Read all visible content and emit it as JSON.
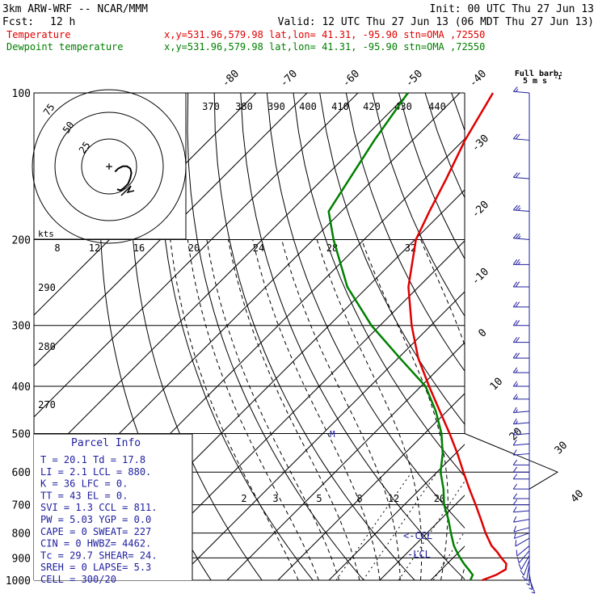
{
  "header": {
    "model": "3km ARW-WRF -- NCAR/MMM",
    "init": "Init: 00 UTC Thu 27 Jun 13",
    "fcst_label": "Fcst:",
    "fcst_value": "12 h",
    "valid": "Valid: 12 UTC Thu 27 Jun 13 (06 MDT Thu 27 Jun 13)",
    "temp_line": {
      "label": "Temperature",
      "info": "x,y=531.96,579.98   lat,lon= 41.31, -95.90  stn=OMA ,72550",
      "color": "#e00000"
    },
    "dew_line": {
      "label": "Dewpoint temperature",
      "info": "x,y=531.96,579.98   lat,lon= 41.31, -95.90  stn=OMA ,72550",
      "color": "#008000"
    }
  },
  "barb_legend": {
    "title": "Full barb:",
    "unit": "5 m s",
    "exp": "-1"
  },
  "parcel_info": {
    "title": "Parcel Info",
    "rows": [
      "T  =    20.1  Td =  17.8",
      "LI =     2.1  LCL =  880.",
      "K  =      36  LFC =    0.",
      "TT =      43  EL  =    0.",
      "SVI =    1.3  CCL =  811.",
      "PW =    5.03  YGP =   0.0",
      "CAPE =     0  SWEAT=  227",
      "CIN =      0  HWBZ= 4462.",
      "Tc =    29.7  SHEAR=  24.",
      "SREH =     0  LAPSE=  5.3",
      "CELL = 300/20"
    ]
  },
  "hodograph": {
    "rings": [
      "25",
      "50",
      "75"
    ],
    "unit_label": "kts"
  },
  "level_markers": {
    "ccl": "<-CCL",
    "lcl": "-LCL",
    "m": "M"
  },
  "colors": {
    "temperature": "#e00000",
    "dewpoint": "#008000",
    "wind": "#2020a0",
    "grid": "#000000"
  },
  "chart_data": {
    "type": "skew-t",
    "y_axis": "pressure (hPa), log scale",
    "p_range": [
      1000,
      100
    ],
    "isobars": [
      100,
      200,
      300,
      400,
      500,
      600,
      700,
      800,
      900,
      1000
    ],
    "isotherm_labels": [
      "-80",
      "-70",
      "-60",
      "-50",
      "-40",
      "-30",
      "-20",
      "-10",
      "0",
      "10",
      "20",
      "30",
      "40"
    ],
    "theta_labels": [
      "370",
      "380",
      "390",
      "400",
      "410",
      "420",
      "430",
      "440"
    ],
    "thetae_labels": [
      "290",
      "280",
      "270"
    ],
    "mixing_ratio_top_labels": [
      "8",
      "12",
      "16",
      "20",
      "24",
      "28",
      "32"
    ],
    "mixing_ratio_bottom_labels": [
      "2",
      "3",
      "5",
      "8",
      "12",
      "20"
    ],
    "temperature": {
      "p": [
        1000,
        975,
        950,
        925,
        900,
        875,
        850,
        800,
        750,
        700,
        650,
        600,
        550,
        500,
        450,
        400,
        350,
        300,
        250,
        200,
        175,
        150,
        125,
        100
      ],
      "T": [
        20.1,
        21.8,
        22.6,
        21.6,
        19.5,
        17.5,
        15.2,
        11.5,
        7.9,
        4.0,
        -0.3,
        -4.8,
        -9.6,
        -15.1,
        -21.4,
        -28.4,
        -36.1,
        -43.8,
        -52.0,
        -59.8,
        -62.7,
        -65.8,
        -69.7,
        -73.5
      ]
    },
    "dewpoint": {
      "p": [
        1000,
        975,
        950,
        925,
        900,
        875,
        850,
        800,
        750,
        700,
        650,
        600,
        550,
        500,
        450,
        400,
        350,
        300,
        250,
        200,
        175,
        150,
        125,
        100
      ],
      "Td": [
        17.8,
        17.2,
        15.3,
        13.3,
        11.4,
        9.6,
        7.8,
        4.7,
        1.5,
        -2.2,
        -5.4,
        -9.3,
        -12.5,
        -16.7,
        -22.2,
        -29.1,
        -39.7,
        -51.7,
        -64.0,
        -76.0,
        -82.5,
        -84.8,
        -87.5,
        -90.2
      ]
    },
    "hodograph": {
      "u_kt": [
        0,
        3,
        6,
        10,
        12,
        13,
        12,
        9,
        5,
        1,
        -2
      ],
      "v_kt": [
        -12,
        -13,
        -11,
        -7,
        -2,
        3,
        7,
        9,
        9,
        7,
        4
      ]
    },
    "wind_profile": {
      "p": [
        990,
        970,
        950,
        930,
        910,
        890,
        870,
        850,
        820,
        800,
        780,
        750,
        720,
        700,
        680,
        650,
        620,
        600,
        580,
        550,
        525,
        500,
        475,
        450,
        425,
        400,
        375,
        350,
        325,
        300,
        275,
        250,
        225,
        200,
        175,
        150,
        125,
        100
      ],
      "speed_ms": [
        5,
        6,
        7,
        8,
        8,
        9,
        9,
        9,
        10,
        10,
        10,
        9,
        9,
        9,
        8,
        8,
        8,
        9,
        9,
        10,
        11,
        12,
        13,
        14,
        15,
        16,
        17,
        18,
        19,
        20,
        21,
        22,
        23,
        24,
        23,
        21,
        19,
        17
      ],
      "dir_deg": [
        160,
        170,
        180,
        190,
        200,
        210,
        220,
        230,
        240,
        250,
        255,
        260,
        265,
        270,
        270,
        270,
        270,
        270,
        270,
        265,
        265,
        265,
        265,
        265,
        270,
        270,
        270,
        270,
        270,
        270,
        270,
        270,
        270,
        275,
        275,
        275,
        275,
        275
      ]
    }
  }
}
